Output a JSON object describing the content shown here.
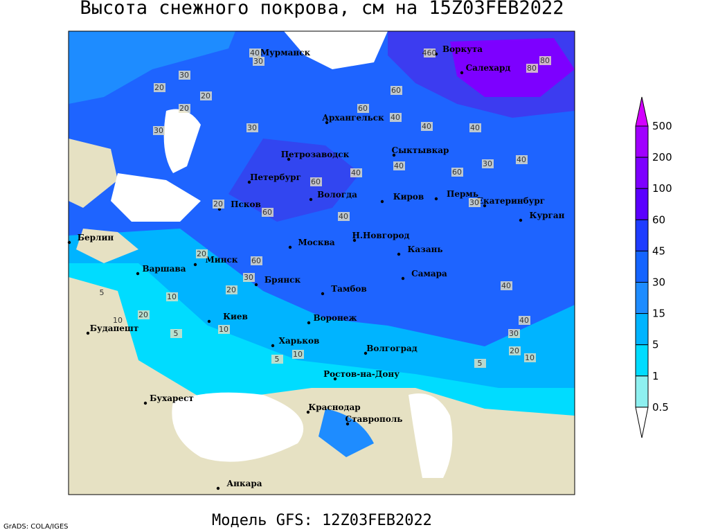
{
  "header": {
    "title": "Высота снежного покрова, см на 15Z03FEB2022"
  },
  "footer": {
    "model": "Модель GFS: 12Z03FEB2022",
    "credit": "GrADS: COLA/IGES"
  },
  "legend": {
    "levels": [
      500,
      200,
      100,
      60,
      45,
      30,
      15,
      5,
      1,
      0.5
    ],
    "colors": [
      "#d200ff",
      "#a000ff",
      "#7d00ff",
      "#5a00ff",
      "#1e3cff",
      "#1464ff",
      "#1e8cff",
      "#00b4ff",
      "#00dcff",
      "#8ef0f0",
      "#ffffff"
    ]
  },
  "cities": [
    "Мурманск",
    "Воркута",
    "Салехард",
    "Архангельск",
    "Сыктывкар",
    "Петрозаводск",
    "Петербург",
    "Вологда",
    "Киров",
    "Пермь",
    "Екатеринбург",
    "Курган",
    "Псков",
    "Н.Новгород",
    "Москва",
    "Казань",
    "Берлин",
    "Минск",
    "Варшава",
    "Самара",
    "Брянск",
    "Тамбов",
    "Киев",
    "Воронеж",
    "Будапешт",
    "Харьков",
    "Волгоград",
    "Ростов-на-Дону",
    "Бухарест",
    "Краснодар",
    "Ставрополь",
    "Анкара"
  ],
  "contour_labels": [
    40,
    30,
    30,
    20,
    20,
    20,
    30,
    30,
    60,
    60,
    40,
    40,
    40,
    60,
    40,
    30,
    40,
    40,
    60,
    40,
    30,
    60,
    20,
    30,
    20,
    10,
    10,
    20,
    5,
    10,
    5,
    40,
    30,
    20,
    10,
    5,
    40,
    20,
    5,
    10,
    80,
    80,
    460,
    60
  ]
}
